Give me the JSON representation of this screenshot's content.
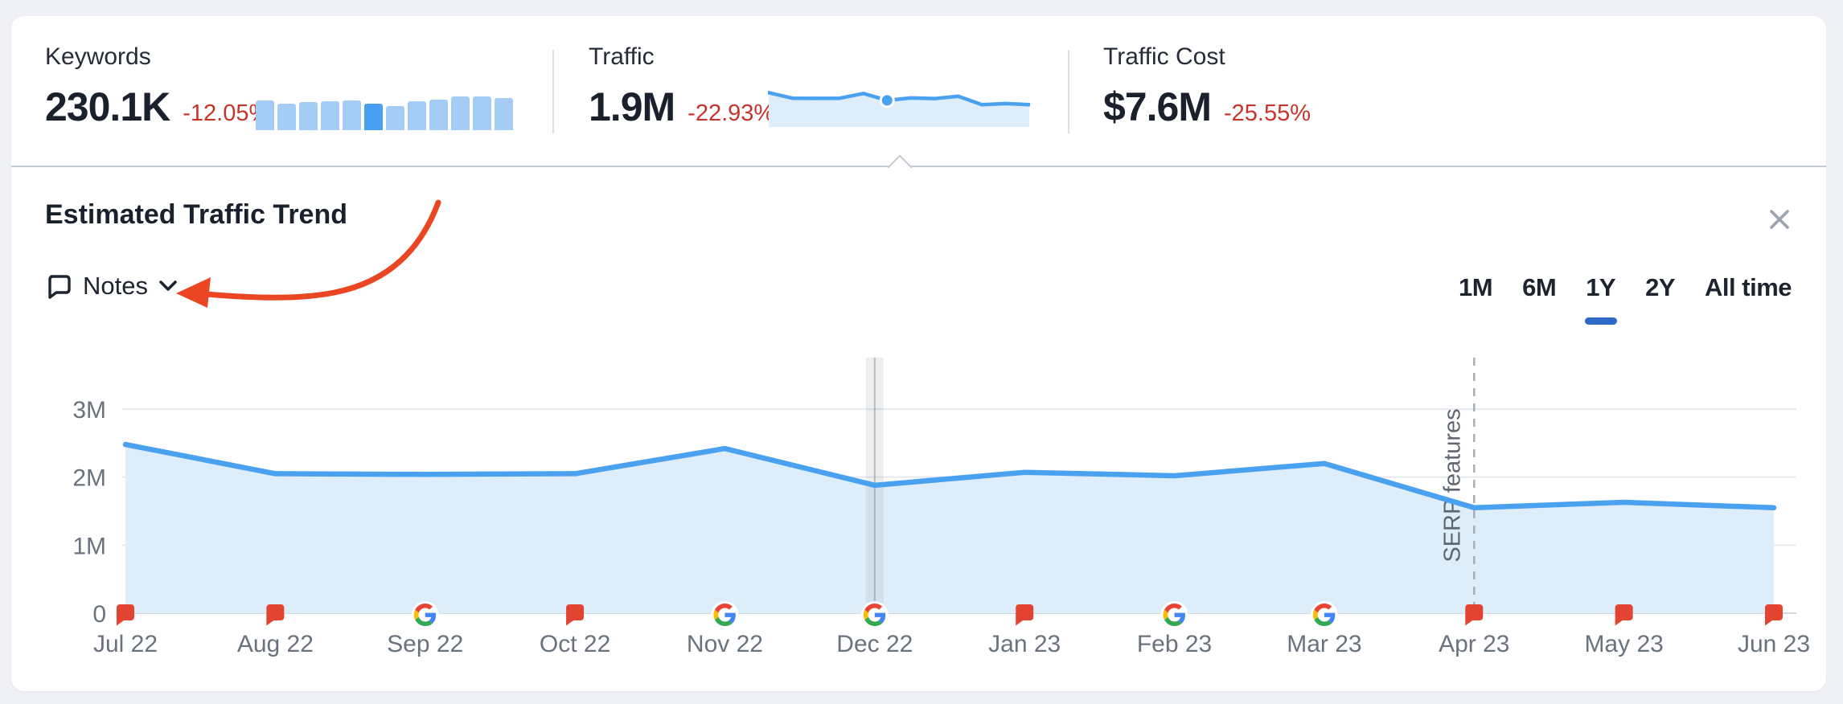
{
  "metrics": {
    "keywords": {
      "label": "Keywords",
      "value": "230.1K",
      "delta": "-12.05%"
    },
    "traffic": {
      "label": "Traffic",
      "value": "1.9M",
      "delta": "-22.93%"
    },
    "traffic_cost": {
      "label": "Traffic Cost",
      "value": "$7.6M",
      "delta": "-25.55%"
    }
  },
  "panel": {
    "title": "Estimated Traffic Trend",
    "notes_label": "Notes",
    "ranges": [
      "1M",
      "6M",
      "1Y",
      "2Y",
      "All time"
    ],
    "active_range": "1Y"
  },
  "chart_data": [
    {
      "id": "traffic_trend",
      "type": "area",
      "title": "Estimated Traffic Trend",
      "x": [
        "Jul 22",
        "Aug 22",
        "Sep 22",
        "Oct 22",
        "Nov 22",
        "Dec 22",
        "Jan 23",
        "Feb 23",
        "Mar 23",
        "Apr 23",
        "May 23",
        "Jun 23"
      ],
      "series": [
        {
          "name": "Traffic",
          "values": [
            2480000,
            2050000,
            2040000,
            2050000,
            2420000,
            1880000,
            2070000,
            2020000,
            2200000,
            1550000,
            1630000,
            1550000
          ]
        }
      ],
      "ylim": [
        0,
        3000000
      ],
      "yticks": [
        {
          "value": 0,
          "label": "0"
        },
        {
          "value": 1000000,
          "label": "1M"
        },
        {
          "value": 2000000,
          "label": "2M"
        },
        {
          "value": 3000000,
          "label": "3M"
        }
      ],
      "grid": true,
      "legend_position": "none",
      "x_markers": [
        "flag",
        "flag",
        "google",
        "flag",
        "google",
        "google",
        "flag",
        "google",
        "google",
        "flag",
        "flag",
        "flag"
      ],
      "highlight_x": "Dec 22",
      "annotation": {
        "x": "Apr 23",
        "label": "SERP features",
        "style": "dashed-vertical"
      }
    },
    {
      "id": "keywords_spark",
      "type": "bar",
      "values": [
        37,
        33,
        35,
        36,
        37,
        33,
        30,
        36,
        38,
        42,
        42,
        40
      ],
      "highlight_index": 5
    },
    {
      "id": "traffic_spark",
      "type": "area",
      "values": [
        2480000,
        2050000,
        2040000,
        2050000,
        2420000,
        1880000,
        2070000,
        2020000,
        2200000,
        1550000,
        1630000,
        1550000
      ],
      "dot_index": 5
    }
  ],
  "colors": {
    "accent_blue": "#4AA1F0",
    "area_fill": "#DEEDFA",
    "bar_light": "#A4CCF4",
    "bar_dark": "#47A0F0",
    "delta_red": "#C6352C",
    "flag_red": "#E34331",
    "tab_underline": "#2E6AC6",
    "arrow_red": "#EA4623",
    "grid_gray": "#E6E9ED",
    "axis_gray": "#D5D9DF",
    "text_gray": "#6A727E",
    "text_dark": "#1B212C",
    "google_blue": "#4285F4",
    "google_green": "#34A853",
    "google_yellow": "#FBBC05",
    "google_red": "#EA4335"
  }
}
